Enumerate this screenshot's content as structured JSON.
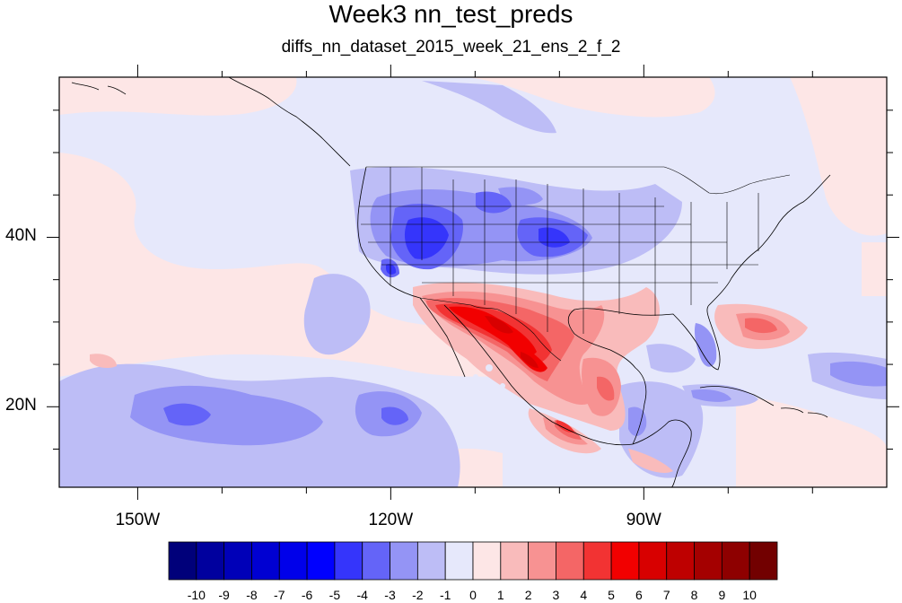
{
  "title": "Week3 nn_test_preds",
  "subtitle": "diffs_nn_dataset_2015_week_21_ens_2_f_2",
  "map": {
    "projection": "cylindrical-equidistant",
    "lon_range": [
      -159.3,
      -61.2
    ],
    "lat_range": [
      10.5,
      58.9
    ],
    "lat_labels": [
      {
        "value": 40,
        "text": "40N"
      },
      {
        "value": 20,
        "text": "20N"
      }
    ],
    "lon_labels": [
      {
        "value": -150,
        "text": "150W"
      },
      {
        "value": -120,
        "text": "120W"
      },
      {
        "value": -90,
        "text": "90W"
      }
    ],
    "background_color": "#e6e8fb",
    "features": [
      {
        "kind": "negative",
        "level": -5,
        "region": "Great Basin / Nevada-Utah"
      },
      {
        "kind": "negative",
        "level": -4,
        "region": "Central Plains / Kansas-Nebraska"
      },
      {
        "kind": "negative",
        "level": -4,
        "region": "Northern Rockies"
      },
      {
        "kind": "positive",
        "level": 6,
        "region": "Northern Mexico / Texas"
      },
      {
        "kind": "positive",
        "level": 3,
        "region": "Gulf of Mexico / Southeast US"
      },
      {
        "kind": "positive",
        "level": 2,
        "region": "East Pacific west of Baja"
      },
      {
        "kind": "negative",
        "level": -3,
        "region": "Subtropical Eastern Pacific"
      },
      {
        "kind": "negative",
        "level": -3,
        "region": "Florida / Caribbean"
      }
    ]
  },
  "colorbar": {
    "colors": [
      "#00007a",
      "#00009e",
      "#0000b8",
      "#0000d2",
      "#0000ea",
      "#0000ff",
      "#3535fb",
      "#6464f8",
      "#9494f5",
      "#bdbdf6",
      "#e6e8fb",
      "#fde6e6",
      "#f9bbbb",
      "#f79292",
      "#f46666",
      "#f23333",
      "#f20000",
      "#d80000",
      "#be0000",
      "#a40000",
      "#8e0000",
      "#720000"
    ],
    "labels": [
      "-10",
      "-9",
      "-8",
      "-7",
      "-6",
      "-5",
      "-4",
      "-3",
      "-2",
      "-1",
      "0",
      "1",
      "2",
      "3",
      "4",
      "5",
      "6",
      "7",
      "8",
      "9",
      "10"
    ]
  }
}
